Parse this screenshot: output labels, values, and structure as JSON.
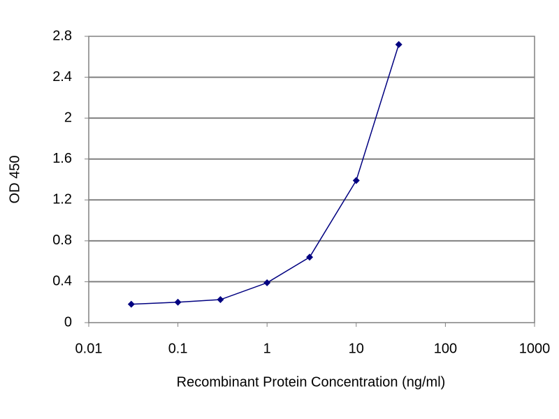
{
  "chart_data": {
    "type": "line",
    "xlabel": "Recombinant Protein Concentration (ng/ml)",
    "ylabel": "OD 450",
    "x": [
      0.03,
      0.1,
      0.3,
      1,
      3,
      10,
      30
    ],
    "values": [
      0.18,
      0.2,
      0.225,
      0.39,
      0.64,
      1.39,
      2.72
    ],
    "color": "#000080",
    "xscale": "log",
    "xlim": [
      0.01,
      1000
    ],
    "xticks": [
      0.01,
      0.1,
      1,
      10,
      100,
      1000
    ],
    "ylim": [
      0,
      2.8
    ],
    "yticks": [
      0,
      0.4,
      0.8,
      1.2,
      1.6,
      2,
      2.4,
      2.8
    ],
    "grid": true
  }
}
